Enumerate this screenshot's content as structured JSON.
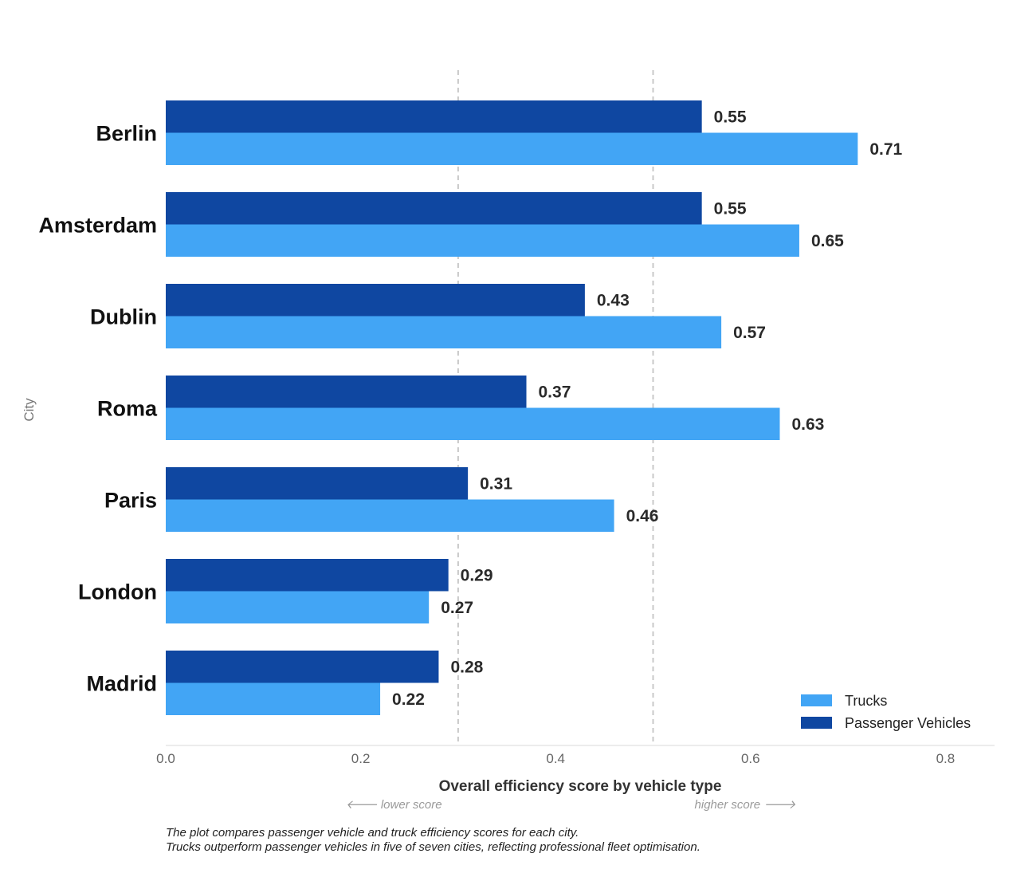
{
  "chart_data": {
    "type": "bar",
    "orientation": "horizontal",
    "categories": [
      "Berlin",
      "Amsterdam",
      "Dublin",
      "Roma",
      "Paris",
      "London",
      "Madrid"
    ],
    "series": [
      {
        "name": "Passenger Vehicles",
        "color": "#0f47a1",
        "values": [
          0.55,
          0.55,
          0.43,
          0.37,
          0.31,
          0.29,
          0.28
        ]
      },
      {
        "name": "Trucks",
        "color": "#42a5f5",
        "values": [
          0.71,
          0.65,
          0.57,
          0.63,
          0.46,
          0.27,
          0.22
        ]
      }
    ],
    "value_labels": {
      "Passenger Vehicles": [
        "0.55",
        "0.55",
        "0.43",
        "0.37",
        "0.31",
        "0.29",
        "0.28"
      ],
      "Trucks": [
        "0.71",
        "0.65",
        "0.57",
        "0.63",
        "0.46",
        "0.27",
        "0.22"
      ]
    },
    "xlabel": "Overall efficiency score by vehicle type",
    "ylabel": "City",
    "xlim": [
      0,
      0.85
    ],
    "xticks": [
      0,
      0.2,
      0.4,
      0.6,
      0.8
    ],
    "xtick_labels": [
      "0.0",
      "0.2",
      "0.4",
      "0.6",
      "0.8"
    ],
    "reference_lines": [
      0.3,
      0.5
    ],
    "direction_hints": {
      "left": "🡐 lower score",
      "right": "higher score 🡒"
    },
    "legend": {
      "position": "bottom-right",
      "entries": [
        "Trucks",
        "Passenger Vehicles"
      ]
    },
    "grid": false
  },
  "caption": {
    "line1": "The plot compares passenger vehicle and truck efficiency scores for each city.",
    "line2": "Trucks outperform passenger vehicles in five of seven cities, reflecting professional fleet optimisation."
  }
}
